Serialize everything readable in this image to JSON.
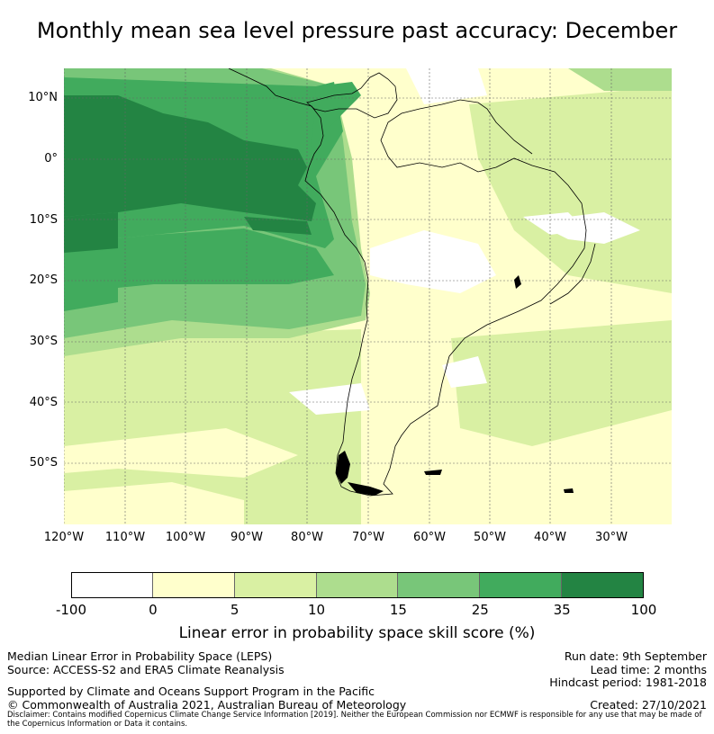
{
  "title": "Monthly mean sea level pressure past accuracy: December",
  "map": {
    "lat_labels": [
      "10°N",
      "0°",
      "10°S",
      "20°S",
      "30°S",
      "40°S",
      "50°S"
    ],
    "lon_labels": [
      "120°W",
      "110°W",
      "100°W",
      "90°W",
      "80°W",
      "70°W",
      "60°W",
      "50°W",
      "40°W",
      "30°W"
    ]
  },
  "colorbar": {
    "ticks": [
      "-100",
      "0",
      "5",
      "10",
      "15",
      "25",
      "35",
      "100"
    ],
    "colors": [
      "#ffffff",
      "#ffffcc",
      "#d9f0a3",
      "#addd8e",
      "#78c679",
      "#41ab5d",
      "#238443"
    ],
    "label": "Linear error in probability space skill score (%)"
  },
  "footer": {
    "left_line1": "Median Linear Error in Probability Space (LEPS)",
    "left_line2": "Source: ACCESS-S2 and ERA5 Climate Reanalysis",
    "support": "Supported by Climate and Oceans Support Program in the Pacific",
    "copyright": "© Commonwealth of Australia 2021, Australian Bureau of Meteorology",
    "run_date": "Run date: 9th September",
    "lead_time": "Lead time: 2 months",
    "hindcast": "Hindcast period: 1981-2018",
    "created": "Created: 27/10/2021",
    "disclaimer": "Disclaimer: Contains modified Copernicus Climate Change Service Information [2019]. Neither the European Commission nor ECMWF is responsible for any use that may be made of the Copernicus Information or Data it contains."
  }
}
